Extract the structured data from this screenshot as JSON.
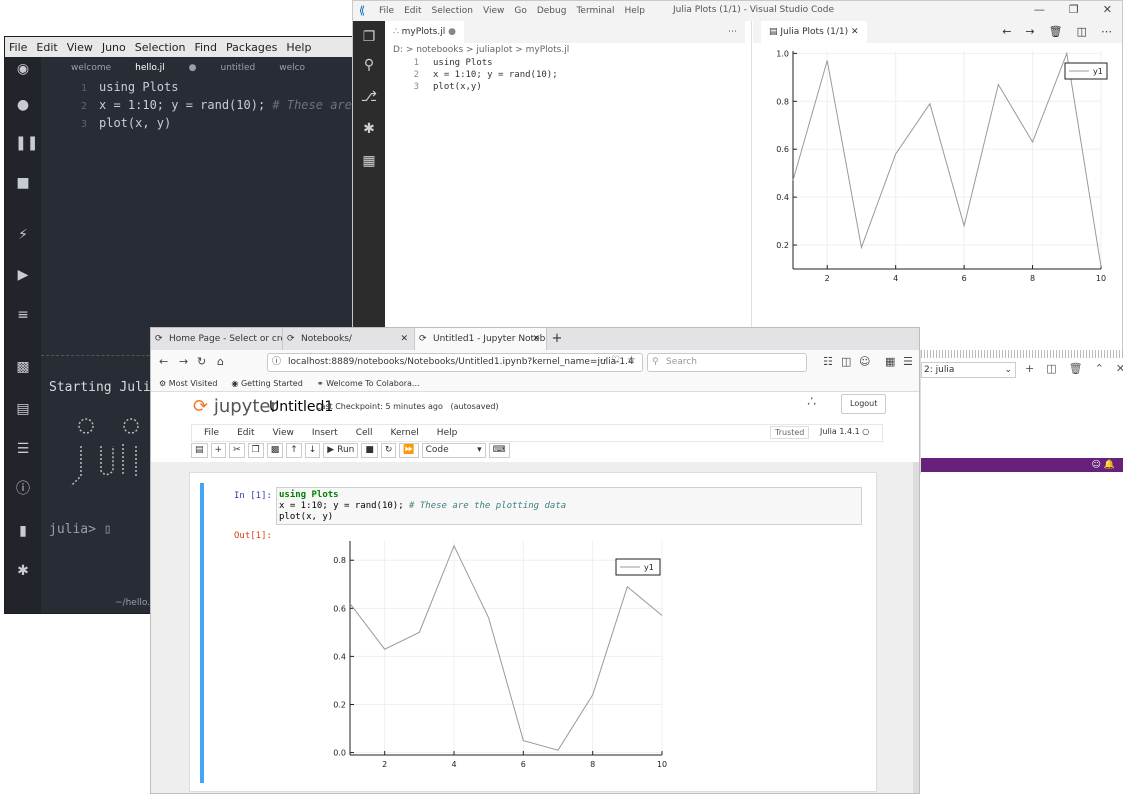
{
  "juno": {
    "menu": [
      "File",
      "Edit",
      "View",
      "Juno",
      "Selection",
      "Find",
      "Packages",
      "Help"
    ],
    "tabs": [
      "welcome",
      "hello.jl",
      "untitled",
      "welco"
    ],
    "code_lines": [
      {
        "n": "1",
        "text": "using Plots"
      },
      {
        "n": "2",
        "text": "x = 1:10; y = rand(10);",
        "comment": "# These are the"
      },
      {
        "n": "3",
        "text": "plot(x, y)"
      }
    ],
    "console_starting": "Starting Julia.",
    "console_prompt": "julia>",
    "status_file": "~/hello.jl"
  },
  "vscode": {
    "menu": [
      "File",
      "Edit",
      "Selection",
      "View",
      "Go",
      "Debug",
      "Terminal",
      "Help"
    ],
    "window_title": "Julia Plots (1/1) - Visual Studio Code",
    "editor_tab": "myPlots.jl",
    "breadcrumb": "D: > notebooks > juliaplot > myPlots.jl",
    "code_lines": [
      {
        "n": "1",
        "text": "using Plots"
      },
      {
        "n": "2",
        "text": "x = 1:10; y = rand(10);"
      },
      {
        "n": "3",
        "text": "plot(x,y)"
      }
    ],
    "plot_tab": "Julia Plots (1/1)",
    "terminal_select": "2: julia"
  },
  "firefox": {
    "tabs": [
      "Home Page - Select or crea",
      "Notebooks/",
      "Untitled1 - Jupyter Notebo"
    ],
    "url": "localhost:8889/notebooks/Notebooks/Untitled1.ipynb?kernel_name=julia-1.4",
    "search_placeholder": "Search",
    "bookmarks": [
      "Most Visited",
      "Getting Started",
      "Welcome To Colabora..."
    ]
  },
  "jupyter": {
    "logo_text": "jupyter",
    "notebook_name": "Untitled1",
    "checkpoint": "Last Checkpoint: 5 minutes ago",
    "autosaved": "(autosaved)",
    "logout": "Logout",
    "menu": [
      "File",
      "Edit",
      "View",
      "Insert",
      "Cell",
      "Kernel",
      "Help"
    ],
    "trusted": "Trusted",
    "kernel": "Julia 1.4.1",
    "run_label": "Run",
    "cell_type": "Code",
    "in_prompt": "In [1]:",
    "out_prompt": "Out[1]:",
    "code": {
      "line1": "using Plots",
      "line2": "x = 1:10; y = rand(10);",
      "line2_comment": "# These are the plotting data",
      "line3": "plot(x, y)"
    }
  },
  "chart_data": [
    {
      "type": "line",
      "where": "VS Code Julia Plots pane",
      "x": [
        1,
        2,
        3,
        4,
        5,
        6,
        7,
        8,
        9,
        10
      ],
      "series": [
        {
          "name": "y1",
          "values": [
            0.47,
            0.97,
            0.19,
            0.58,
            0.79,
            0.28,
            0.87,
            0.63,
            1.0,
            0.11
          ]
        }
      ],
      "xticks": [
        "2",
        "4",
        "6",
        "8",
        "10"
      ],
      "yticks": [
        "0.2",
        "0.4",
        "0.6",
        "0.8",
        "1.0"
      ],
      "xlim": [
        1,
        10
      ],
      "ylim": [
        0.1,
        1.01
      ],
      "grid": true,
      "legend": "top-right",
      "color": "#999999"
    },
    {
      "type": "line",
      "where": "Jupyter output",
      "x": [
        1,
        2,
        3,
        4,
        5,
        6,
        7,
        8,
        9,
        10
      ],
      "series": [
        {
          "name": "y1",
          "values": [
            0.62,
            0.43,
            0.5,
            0.86,
            0.56,
            0.05,
            0.01,
            0.24,
            0.69,
            0.57
          ]
        }
      ],
      "xticks": [
        "2",
        "4",
        "6",
        "8",
        "10"
      ],
      "yticks": [
        "0.0",
        "0.2",
        "0.4",
        "0.6",
        "0.8"
      ],
      "xlim": [
        1,
        10
      ],
      "ylim": [
        -0.01,
        0.88
      ],
      "grid": true,
      "legend": "top-right",
      "color": "#999999"
    }
  ]
}
